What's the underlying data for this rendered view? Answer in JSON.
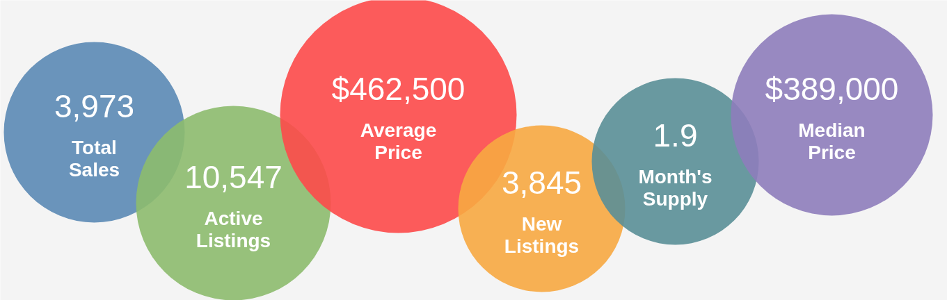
{
  "chart_data": {
    "type": "other",
    "categories": [
      "Total Sales",
      "Active Listings",
      "Average Price",
      "New Listings",
      "Month's Supply",
      "Median Price"
    ],
    "values": [
      3973,
      10547,
      462500,
      3845,
      1.9,
      389000
    ],
    "value_labels": [
      "3,973",
      "10,547",
      "$462,500",
      "3,845",
      "1.9",
      "$389,000"
    ],
    "colors": [
      "#5b8ab5",
      "#8dbb6e",
      "#fd4a4a",
      "#f7a941",
      "#5a8f97",
      "#8e7dbb"
    ]
  }
}
